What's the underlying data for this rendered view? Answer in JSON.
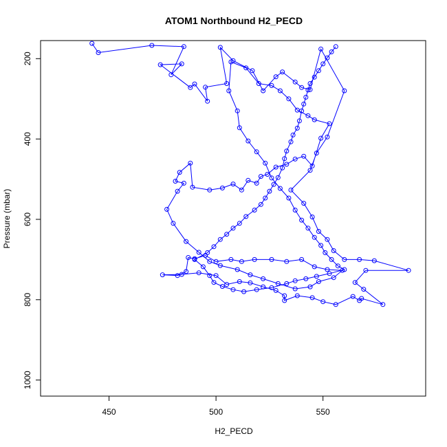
{
  "chart_data": {
    "type": "scatter",
    "title": "ATOM1 Northbound H2_PECD",
    "xlabel": "H2_PECD",
    "ylabel": "Pressure (mbar)",
    "xlim": [
      418,
      598
    ],
    "ylim": [
      1040,
      155
    ],
    "y_reversed": true,
    "x_ticks": [
      450,
      500,
      550
    ],
    "y_ticks": [
      200,
      400,
      600,
      800,
      1000
    ],
    "grid": false,
    "legend": "none",
    "marker": "open-circle",
    "connect_points": true,
    "series": [
      {
        "color": "#0000ff",
        "points": [
          [
            442,
            162
          ],
          [
            445,
            185
          ],
          [
            470,
            167
          ],
          [
            485,
            170
          ],
          [
            479,
            240
          ],
          [
            484,
            213
          ],
          [
            474,
            215
          ],
          [
            488,
            272
          ],
          [
            490,
            263
          ],
          [
            496,
            306
          ],
          [
            495,
            271
          ],
          [
            505,
            262
          ],
          [
            502,
            172
          ],
          [
            508,
            205
          ],
          [
            517,
            230
          ],
          [
            522,
            280
          ],
          [
            528,
            245
          ],
          [
            531,
            233
          ],
          [
            537,
            258
          ],
          [
            540,
            272
          ],
          [
            544,
            277
          ],
          [
            549,
            176
          ],
          [
            560,
            280
          ],
          [
            552,
            395
          ],
          [
            547,
            435
          ],
          [
            544,
            478
          ],
          [
            535,
            527
          ],
          [
            541,
            560
          ],
          [
            545,
            594
          ],
          [
            548,
            630
          ],
          [
            552,
            650
          ],
          [
            555,
            678
          ],
          [
            560,
            700
          ],
          [
            567,
            700
          ],
          [
            574,
            703
          ],
          [
            590,
            727
          ],
          [
            570,
            727
          ],
          [
            565,
            757
          ],
          [
            569,
            774
          ],
          [
            578,
            812
          ],
          [
            568,
            797
          ],
          [
            567,
            802
          ],
          [
            564,
            792
          ],
          [
            556,
            812
          ],
          [
            550,
            805
          ],
          [
            545,
            795
          ],
          [
            538,
            790
          ],
          [
            532,
            802
          ],
          [
            532,
            790
          ],
          [
            528,
            777
          ],
          [
            522,
            768
          ],
          [
            516,
            758
          ],
          [
            511,
            755
          ],
          [
            505,
            762
          ],
          [
            500,
            740
          ],
          [
            492,
            733
          ],
          [
            484,
            737
          ],
          [
            475,
            738
          ],
          [
            482,
            740
          ],
          [
            486,
            730
          ],
          [
            487,
            695
          ],
          [
            490,
            698
          ],
          [
            495,
            690
          ],
          [
            500,
            705
          ],
          [
            507,
            700
          ],
          [
            512,
            705
          ],
          [
            518,
            700
          ],
          [
            526,
            700
          ],
          [
            533,
            705
          ],
          [
            540,
            700
          ],
          [
            546,
            718
          ],
          [
            552,
            725
          ],
          [
            559,
            727
          ],
          [
            555,
            745
          ],
          [
            548,
            755
          ],
          [
            544,
            768
          ],
          [
            537,
            773
          ],
          [
            529,
            760
          ],
          [
            522,
            748
          ],
          [
            516,
            738
          ],
          [
            510,
            725
          ],
          [
            502,
            715
          ],
          [
            497,
            705
          ],
          [
            492,
            682
          ],
          [
            486,
            655
          ],
          [
            480,
            610
          ],
          [
            477,
            575
          ],
          [
            482,
            530
          ],
          [
            485,
            510
          ],
          [
            481,
            505
          ],
          [
            483,
            483
          ],
          [
            488,
            460
          ],
          [
            489,
            520
          ],
          [
            497,
            527
          ],
          [
            503,
            522
          ],
          [
            508,
            512
          ],
          [
            512,
            527
          ],
          [
            515,
            503
          ],
          [
            519,
            510
          ],
          [
            521,
            493
          ],
          [
            524,
            488
          ],
          [
            528,
            470
          ],
          [
            533,
            463
          ],
          [
            537,
            450
          ],
          [
            541,
            443
          ],
          [
            545,
            467
          ],
          [
            549,
            398
          ],
          [
            553,
            362
          ],
          [
            546,
            352
          ],
          [
            543,
            342
          ],
          [
            538,
            328
          ],
          [
            534,
            300
          ],
          [
            530,
            280
          ],
          [
            526,
            267
          ],
          [
            520,
            262
          ],
          [
            514,
            223
          ],
          [
            507,
            208
          ],
          [
            506,
            280
          ],
          [
            510,
            330
          ],
          [
            511,
            372
          ],
          [
            515,
            405
          ],
          [
            519,
            432
          ],
          [
            523,
            460
          ],
          [
            526,
            497
          ],
          [
            530,
            523
          ],
          [
            534,
            547
          ],
          [
            537,
            577
          ],
          [
            540,
            602
          ],
          [
            543,
            622
          ],
          [
            546,
            645
          ],
          [
            549,
            665
          ],
          [
            551,
            683
          ],
          [
            554,
            700
          ],
          [
            557,
            716
          ],
          [
            560,
            725
          ],
          [
            553,
            735
          ],
          [
            547,
            742
          ],
          [
            542,
            748
          ],
          [
            537,
            753
          ],
          [
            533,
            760
          ],
          [
            526,
            770
          ],
          [
            519,
            775
          ],
          [
            513,
            780
          ],
          [
            508,
            775
          ],
          [
            503,
            767
          ],
          [
            499,
            757
          ],
          [
            497,
            740
          ],
          [
            494,
            718
          ],
          [
            490,
            700
          ],
          [
            496,
            683
          ],
          [
            499,
            668
          ],
          [
            502,
            650
          ],
          [
            505,
            637
          ],
          [
            508,
            622
          ],
          [
            511,
            610
          ],
          [
            514,
            593
          ],
          [
            518,
            577
          ],
          [
            521,
            563
          ],
          [
            523,
            547
          ],
          [
            525,
            530
          ],
          [
            527,
            513
          ],
          [
            529,
            496
          ],
          [
            531,
            472
          ],
          [
            532,
            449
          ],
          [
            533,
            430
          ],
          [
            535,
            407
          ],
          [
            536,
            390
          ],
          [
            538,
            373
          ],
          [
            539,
            355
          ],
          [
            540,
            330
          ],
          [
            541,
            313
          ],
          [
            542,
            296
          ],
          [
            543,
            278
          ],
          [
            544,
            262
          ],
          [
            546,
            246
          ],
          [
            548,
            230
          ],
          [
            550,
            213
          ],
          [
            552,
            198
          ],
          [
            554,
            183
          ],
          [
            556,
            170
          ]
        ]
      }
    ]
  }
}
